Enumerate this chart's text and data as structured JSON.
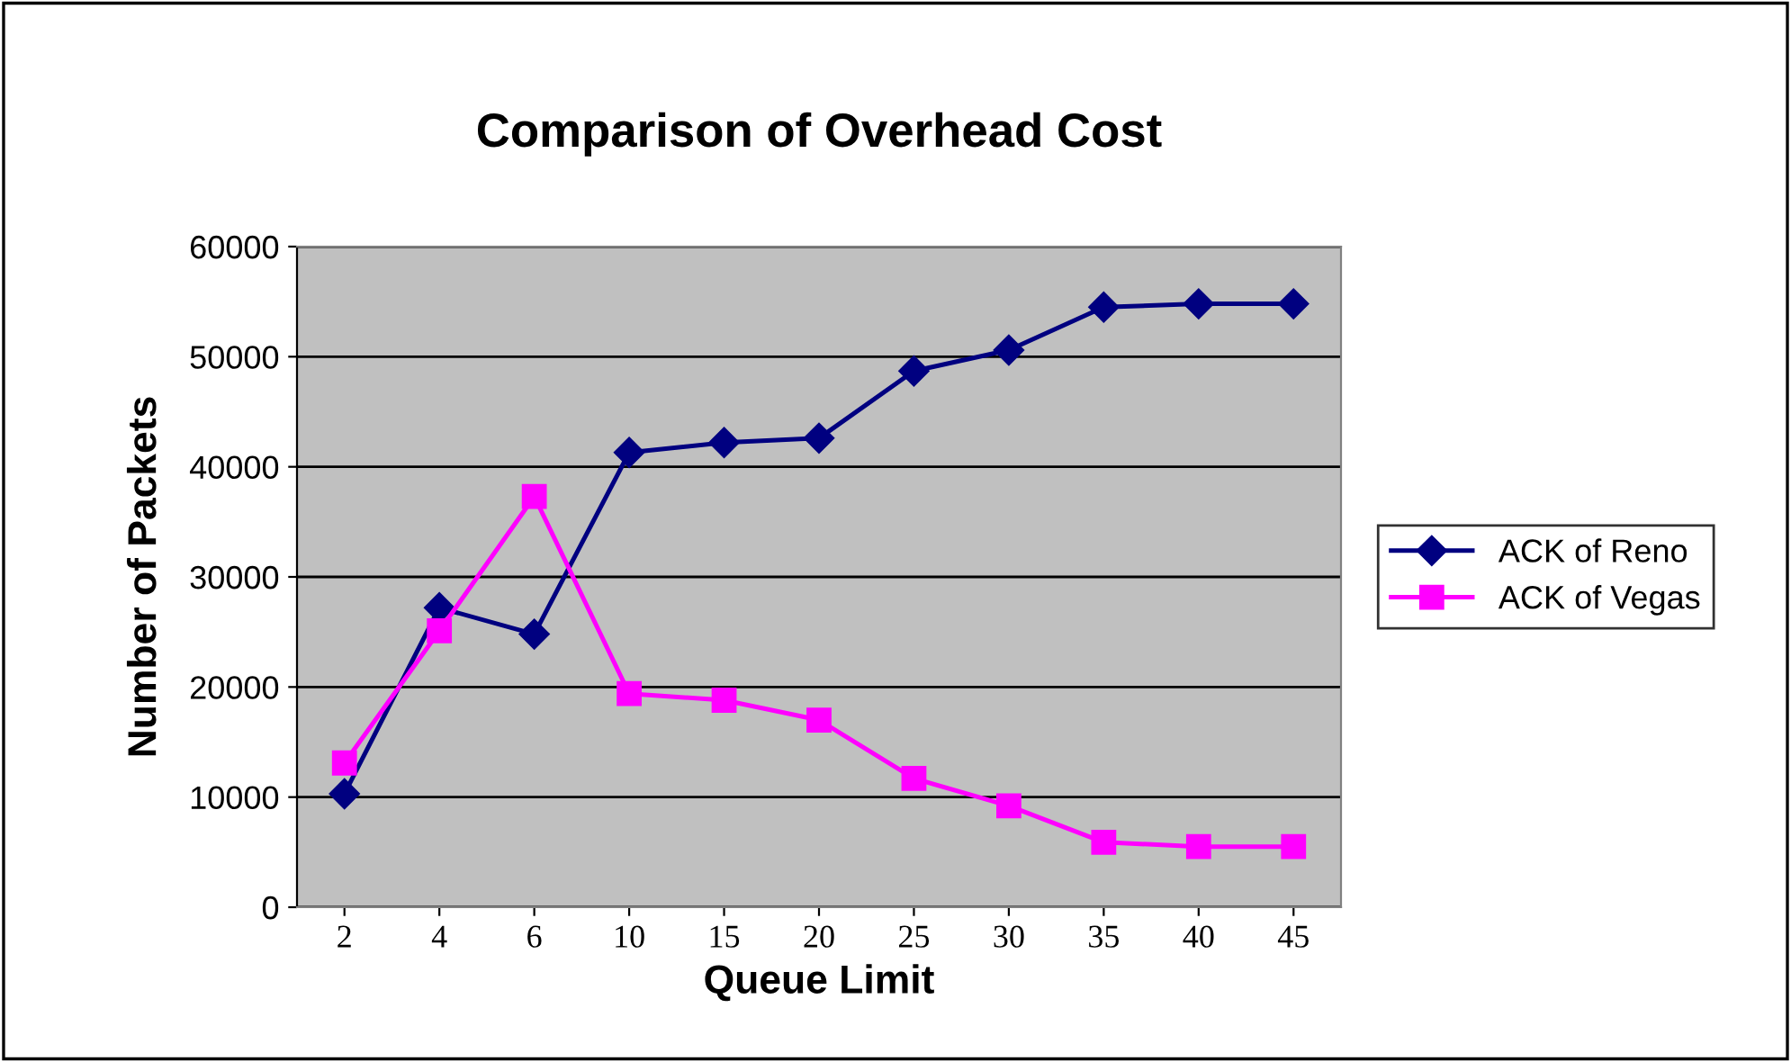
{
  "chart_data": {
    "type": "line",
    "title": "Comparison of Overhead Cost",
    "xlabel": "Queue Limit",
    "ylabel": "Number of Packets",
    "categories": [
      "2",
      "4",
      "6",
      "10",
      "15",
      "20",
      "25",
      "30",
      "35",
      "40",
      "45"
    ],
    "series": [
      {
        "name": "ACK of Reno",
        "color": "#000080",
        "marker": "diamond",
        "values": [
          10300,
          27200,
          24800,
          41300,
          42200,
          42600,
          48700,
          50600,
          54500,
          54800,
          54800
        ]
      },
      {
        "name": "ACK of Vegas",
        "color": "#ff00ff",
        "marker": "square",
        "values": [
          13100,
          25100,
          37300,
          19400,
          18800,
          17000,
          11700,
          9200,
          5900,
          5500,
          5500
        ]
      }
    ],
    "ylim": [
      0,
      60000
    ],
    "yticks": [
      0,
      10000,
      20000,
      30000,
      40000,
      50000,
      60000
    ],
    "grid": "y",
    "legend": "right",
    "line_style": "solid"
  }
}
